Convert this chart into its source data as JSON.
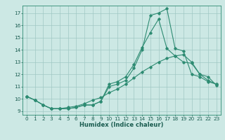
{
  "xlabel": "Humidex (Indice chaleur)",
  "x_values": [
    0,
    1,
    2,
    3,
    4,
    5,
    6,
    7,
    8,
    9,
    10,
    11,
    12,
    13,
    14,
    15,
    16,
    17,
    18,
    19,
    20,
    21,
    22,
    23
  ],
  "line1": [
    10.2,
    9.9,
    9.5,
    9.2,
    9.2,
    9.2,
    9.3,
    9.5,
    9.5,
    9.8,
    11.0,
    11.2,
    11.5,
    12.5,
    14.0,
    16.8,
    17.0,
    17.35,
    14.1,
    13.9,
    12.0,
    11.8,
    11.4,
    11.2
  ],
  "line2": [
    10.2,
    9.9,
    9.5,
    9.2,
    9.2,
    9.2,
    9.3,
    9.5,
    9.5,
    9.8,
    11.2,
    11.4,
    11.8,
    12.8,
    14.2,
    15.4,
    16.5,
    14.1,
    13.5,
    13.0,
    12.9,
    12.0,
    11.8,
    11.1
  ],
  "line3": [
    10.2,
    9.9,
    9.5,
    9.2,
    9.2,
    9.3,
    9.4,
    9.6,
    9.9,
    10.1,
    10.5,
    10.8,
    11.2,
    11.7,
    12.2,
    12.6,
    13.0,
    13.3,
    13.5,
    13.6,
    13.0,
    12.0,
    11.5,
    11.2
  ],
  "line_color": "#2d8b72",
  "bg_color": "#cce8e4",
  "grid_color": "#a0c8c4",
  "ylim": [
    8.7,
    17.6
  ],
  "yticks": [
    9,
    10,
    11,
    12,
    13,
    14,
    15,
    16,
    17
  ],
  "xlim": [
    -0.5,
    23.5
  ],
  "xlabel_fontsize": 6.0,
  "tick_fontsize": 5.2
}
